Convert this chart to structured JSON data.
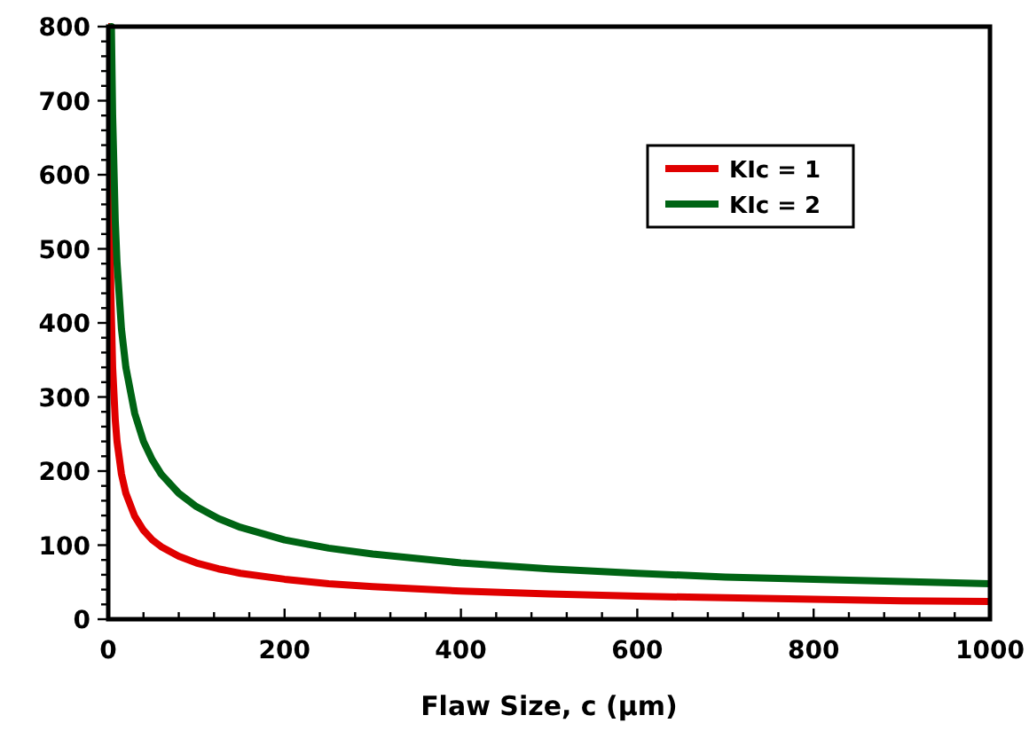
{
  "chart_data": {
    "type": "line",
    "xlabel": "Flaw Size, c (µm)",
    "xlim": [
      0,
      1000
    ],
    "ylim": [
      0,
      800
    ],
    "xticks": [
      0,
      {
        "value": 40,
        "label": null
      },
      {
        "value": 80,
        "label": null
      },
      {
        "value": 120,
        "label": null
      },
      {
        "value": 160,
        "label": null
      },
      200,
      {
        "value": 240,
        "label": null
      },
      {
        "value": 280,
        "label": null
      },
      {
        "value": 320,
        "label": null
      },
      {
        "value": 360,
        "label": null
      },
      400,
      {
        "value": 440,
        "label": null
      },
      {
        "value": 480,
        "label": null
      },
      {
        "value": 520,
        "label": null
      },
      {
        "value": 560,
        "label": null
      },
      600,
      {
        "value": 640,
        "label": null
      },
      {
        "value": 680,
        "label": null
      },
      {
        "value": 720,
        "label": null
      },
      {
        "value": 760,
        "label": null
      },
      800,
      {
        "value": 840,
        "label": null
      },
      {
        "value": 880,
        "label": null
      },
      {
        "value": 920,
        "label": null
      },
      {
        "value": 960,
        "label": null
      },
      1000
    ],
    "yticks": [
      0,
      {
        "value": 20,
        "label": null
      },
      {
        "value": 40,
        "label": null
      },
      {
        "value": 60,
        "label": null
      },
      {
        "value": 80,
        "label": null
      },
      100,
      {
        "value": 120,
        "label": null
      },
      {
        "value": 140,
        "label": null
      },
      {
        "value": 160,
        "label": null
      },
      {
        "value": 180,
        "label": null
      },
      200,
      {
        "value": 220,
        "label": null
      },
      {
        "value": 240,
        "label": null
      },
      {
        "value": 260,
        "label": null
      },
      {
        "value": 280,
        "label": null
      },
      300,
      {
        "value": 320,
        "label": null
      },
      {
        "value": 340,
        "label": null
      },
      {
        "value": 360,
        "label": null
      },
      {
        "value": 380,
        "label": null
      },
      400,
      {
        "value": 420,
        "label": null
      },
      {
        "value": 440,
        "label": null
      },
      {
        "value": 460,
        "label": null
      },
      {
        "value": 480,
        "label": null
      },
      500,
      {
        "value": 520,
        "label": null
      },
      {
        "value": 540,
        "label": null
      },
      {
        "value": 560,
        "label": null
      },
      {
        "value": 580,
        "label": null
      },
      600,
      {
        "value": 620,
        "label": null
      },
      {
        "value": 640,
        "label": null
      },
      {
        "value": 660,
        "label": null
      },
      {
        "value": 680,
        "label": null
      },
      700,
      {
        "value": 720,
        "label": null
      },
      {
        "value": 740,
        "label": null
      },
      {
        "value": 760,
        "label": null
      },
      {
        "value": 780,
        "label": null
      },
      800
    ],
    "grid": false,
    "legend": "top right",
    "marker": "none",
    "line_style": "solid",
    "series": [
      {
        "name": "KIc = 1",
        "color": "#e00000",
        "x": [
          0.9,
          2,
          3,
          5,
          8,
          10,
          15,
          20,
          30,
          40,
          50,
          60,
          80,
          100,
          125,
          150,
          200,
          250,
          300,
          400,
          500,
          600,
          700,
          800,
          900,
          1000
        ],
        "values": [
          800,
          537,
          439,
          340,
          269,
          240,
          196,
          170,
          139,
          120,
          107,
          98,
          85,
          76,
          68,
          62,
          54,
          48,
          44,
          38,
          34,
          31,
          29,
          27,
          25,
          24
        ]
      },
      {
        "name": "KIc = 2",
        "color": "#006414",
        "x": [
          3.6,
          5,
          8,
          10,
          15,
          20,
          30,
          40,
          50,
          60,
          80,
          100,
          125,
          150,
          200,
          250,
          300,
          400,
          500,
          600,
          700,
          800,
          900,
          1000
        ],
        "values": [
          800,
          680,
          537,
          481,
          392,
          340,
          278,
          240,
          215,
          196,
          170,
          152,
          136,
          124,
          107,
          96,
          88,
          76,
          68,
          62,
          57,
          54,
          51,
          48
        ]
      }
    ]
  }
}
